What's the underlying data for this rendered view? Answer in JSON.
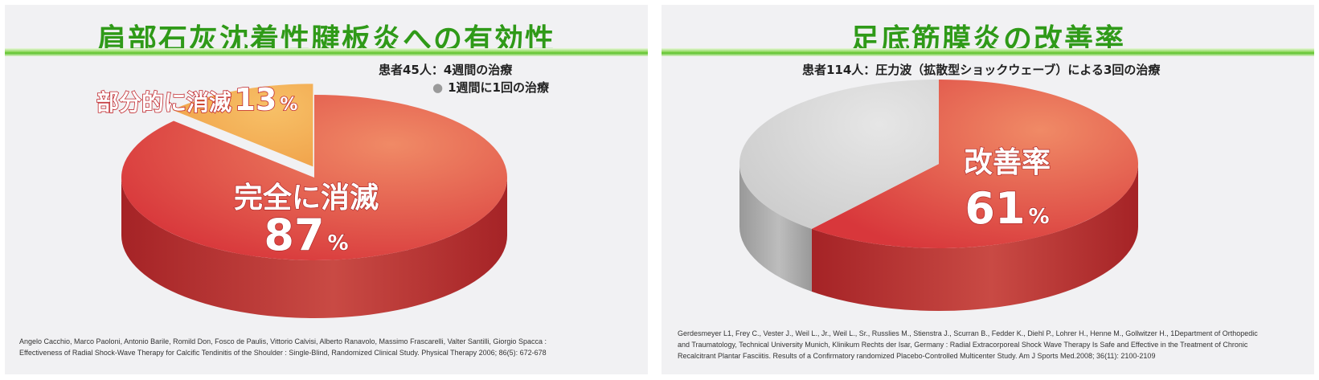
{
  "colors": {
    "title_green": "#2f9a18",
    "red_top": "#d8373b",
    "red_side": "#a52326",
    "orange_top": "#f0a24a",
    "orange_side": "#b5692a",
    "grey_top": "#cdcdcd",
    "grey_side": "#999999"
  },
  "left": {
    "title": "肩部石灰沈着性腱板炎への有効性",
    "subtitle": "患者45人：4週間の治療",
    "note": "1週間に1回の治療",
    "big_label": "完全に消滅",
    "big_value": "87",
    "big_unit": "%",
    "small_label": "部分的に消滅",
    "small_value": "13",
    "small_unit": "%",
    "citation_1": "Angelo Cacchio, Marco Paoloni, Antonio Barile, Romild Don, Fosco de Paulis, Vittorio Calvisi, Alberto Ranavolo, Massimo Frascarelli, Valter Santilli, Giorgio Spacca :",
    "citation_2": "Effectiveness of Radial Shock-Wave Therapy for Calcific Tendinitis of the Shoulder : Single-Blind, Randomized Clinical Study. Physical Therapy  2006; 86(5): 672-678"
  },
  "right": {
    "title": "足底筋膜炎の改善率",
    "subtitle": "患者114人：圧力波（拡散型ショックウェーブ）による3回の治療",
    "big_label": "改善率",
    "big_value": "61",
    "big_unit": "%",
    "citation_1": "Gerdesmeyer L1, Frey C., Vester J., Weil L., Jr., Weil L., Sr., Russlies M., Stienstra J., Scurran B., Fedder K., Diehl P., Lohrer H., Henne M., Gollwitzer H., 1Department of Orthopedic",
    "citation_2": "and Traumatology, Technical University Munich, Klinikum Rechts der Isar, Germany : Radial Extracorporeal Shock Wave Therapy Is Safe and Effective in the Treatment of Chronic",
    "citation_3": "Recalcitrant Plantar Fasciitis.  Results of a Confirmatory randomized Placebo-Controlled Multicenter Study. Am J Sports Med.2008; 36(11): 2100-2109"
  },
  "chart_data": [
    {
      "type": "pie",
      "title": "肩部石灰沈着性腱板炎への有効性",
      "subtitle": "患者45人：4週間の治療",
      "series": [
        {
          "labels": [
            "完全に消滅",
            "部分的に消滅"
          ],
          "values": [
            87,
            13
          ],
          "colors": [
            "#d8373b",
            "#f0a24a"
          ],
          "exploded": [
            false,
            true
          ]
        }
      ]
    },
    {
      "type": "pie",
      "title": "足底筋膜炎の改善率",
      "subtitle": "患者114人：圧力波（拡散型ショックウェーブ）による3回の治療",
      "series": [
        {
          "labels": [
            "改善率",
            ""
          ],
          "values": [
            61,
            39
          ],
          "colors": [
            "#d8373b",
            "#cdcdcd"
          ],
          "exploded": [
            false,
            false
          ]
        }
      ]
    }
  ]
}
